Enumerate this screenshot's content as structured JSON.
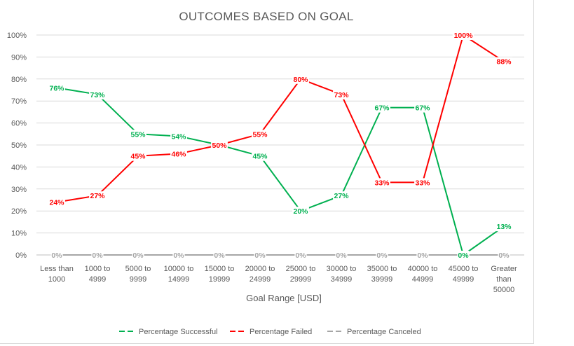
{
  "chart_data": {
    "type": "line",
    "title": "OUTCOMES BASED ON GOAL",
    "xlabel": "Goal Range [USD]",
    "ylabel": "",
    "ylim": [
      0,
      100
    ],
    "yticks": [
      "0%",
      "10%",
      "20%",
      "30%",
      "40%",
      "50%",
      "60%",
      "70%",
      "80%",
      "90%",
      "100%"
    ],
    "grid": "horizontal",
    "legend_position": "bottom",
    "categories": [
      [
        "Less than",
        "1000"
      ],
      [
        "1000 to",
        "4999"
      ],
      [
        "5000 to",
        "9999"
      ],
      [
        "10000 to",
        "14999"
      ],
      [
        "15000 to",
        "19999"
      ],
      [
        "20000 to",
        "24999"
      ],
      [
        "25000 to",
        "29999"
      ],
      [
        "30000 to",
        "34999"
      ],
      [
        "35000 to",
        "39999"
      ],
      [
        "40000 to",
        "44999"
      ],
      [
        "45000 to",
        "49999"
      ],
      [
        "Greater",
        "than",
        "50000"
      ]
    ],
    "series": [
      {
        "name": "Percentage Successful",
        "color": "#00b050",
        "values": [
          76,
          73,
          55,
          54,
          50,
          45,
          20,
          27,
          67,
          67,
          0,
          13
        ],
        "labels": [
          "76%",
          "73%",
          "55%",
          "54%",
          "",
          "45%",
          "20%",
          "27%",
          "67%",
          "67%",
          "0%",
          "13%"
        ]
      },
      {
        "name": "Percentage Failed",
        "color": "#ff0000",
        "values": [
          24,
          27,
          45,
          46,
          50,
          55,
          80,
          73,
          33,
          33,
          100,
          88
        ],
        "labels": [
          "24%",
          "27%",
          "45%",
          "46%",
          "50%",
          "55%",
          "80%",
          "73%",
          "33%",
          "33%",
          "100%",
          "88%"
        ]
      },
      {
        "name": "Percentage Canceled",
        "color": "#a6a6a6",
        "values": [
          0,
          0,
          0,
          0,
          0,
          0,
          0,
          0,
          0,
          0,
          0,
          0
        ],
        "labels": [
          "0%",
          "0%",
          "0%",
          "0%",
          "0%",
          "0%",
          "0%",
          "0%",
          "0%",
          "0%",
          "0%",
          "0%"
        ]
      }
    ]
  }
}
